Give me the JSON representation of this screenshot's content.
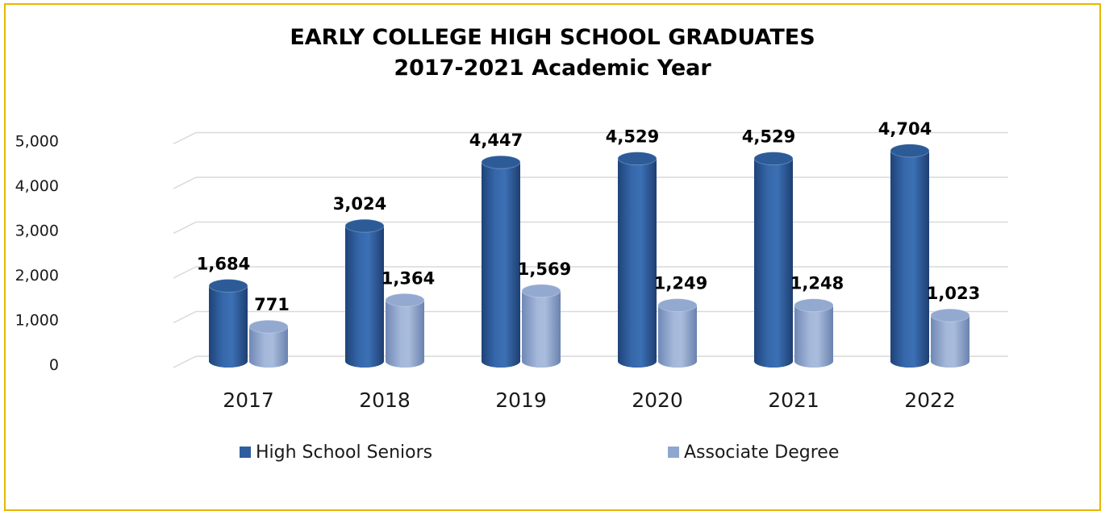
{
  "chart_data": {
    "type": "bar",
    "title": [
      "EARLY COLLEGE HIGH SCHOOL GRADUATES",
      "2017-2021 Academic Year"
    ],
    "categories": [
      "2017",
      "2018",
      "2019",
      "2020",
      "2021",
      "2022"
    ],
    "series": [
      {
        "name": "High School Seniors",
        "values": [
          1684,
          3024,
          4447,
          4529,
          4529,
          4704
        ],
        "labels": [
          "1,684",
          "3,024",
          "4,447",
          "4,529",
          "4,529",
          "4,704"
        ],
        "color": "#2F5F9E"
      },
      {
        "name": "Associate Degree",
        "values": [
          771,
          1364,
          1569,
          1249,
          1248,
          1023
        ],
        "labels": [
          "771",
          "1,364",
          "1,569",
          "1,249",
          "1,248",
          "1,023"
        ],
        "color": "#8FA7D0"
      }
    ],
    "yticks": [
      "0",
      "1,000",
      "2,000",
      "3,000",
      "4,000",
      "5,000"
    ],
    "ylim": [
      0,
      5000
    ],
    "xlabel": "",
    "ylabel": "",
    "grid": true,
    "style": "3d-cylinder",
    "legend_position": "bottom",
    "frame_color": "#E6B800"
  }
}
